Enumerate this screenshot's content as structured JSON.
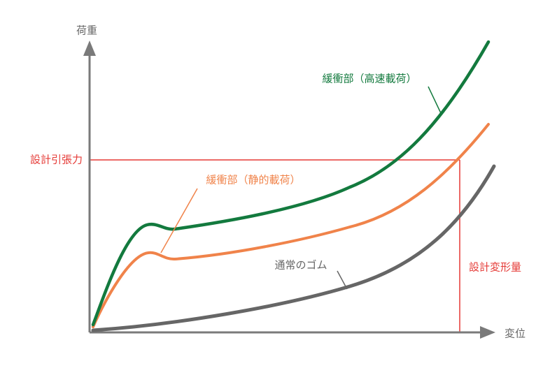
{
  "axes": {
    "y_label": "荷重",
    "x_label": "変位"
  },
  "guides": {
    "design_tension": "設計引張力",
    "design_deformation": "設計変形量"
  },
  "curves": [
    {
      "label": "緩衝部（高速載荷）"
    },
    {
      "label": "緩衝部（静的載荷）"
    },
    {
      "label": "通常のゴム"
    }
  ]
}
